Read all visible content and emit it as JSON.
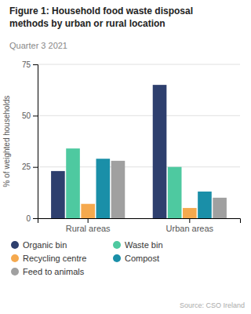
{
  "chart_data": {
    "type": "bar",
    "title": "Figure 1: Household food waste disposal\nmethods by urban or rural location",
    "subtitle": "Quarter 3 2021",
    "ylabel": "% of weighted households",
    "annotations": [
      "Source: CSO Ireland"
    ],
    "categories": [
      "Rural areas",
      "Urban areas"
    ],
    "series": [
      {
        "name": "Organic bin",
        "color": "#2e3f6e",
        "values": [
          23,
          65
        ]
      },
      {
        "name": "Waste bin",
        "color": "#4ec9a0",
        "values": [
          34,
          25
        ]
      },
      {
        "name": "Recycling centre",
        "color": "#f5a94e",
        "values": [
          7,
          5
        ]
      },
      {
        "name": "Compost",
        "color": "#1a8fa8",
        "values": [
          29,
          13
        ]
      },
      {
        "name": "Feed to animals",
        "color": "#a0a0a0",
        "values": [
          28,
          10
        ]
      }
    ],
    "ylim": [
      0,
      75
    ],
    "yticks": [
      0,
      25,
      50,
      75
    ],
    "grid": true,
    "legend": "lower left"
  }
}
